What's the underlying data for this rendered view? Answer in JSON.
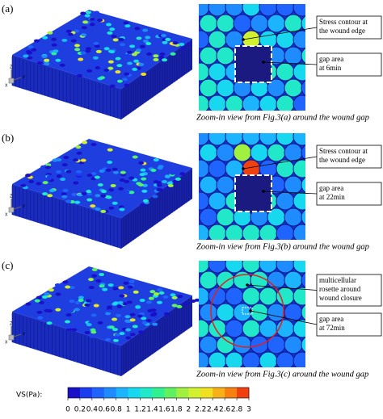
{
  "panels": [
    {
      "label": "(a)",
      "caption": "Zoom-in view from Fig.3(a) around the wound gap",
      "annotations": [
        {
          "lines": [
            "Stress contour at",
            "the wound edge"
          ]
        },
        {
          "lines": [
            "gap area",
            "at 6min"
          ]
        }
      ]
    },
    {
      "label": "(b)",
      "caption": "Zoom-in view from Fig.3(b) around the wound gap",
      "annotations": [
        {
          "lines": [
            "Stress contour at",
            "the wound edge"
          ]
        },
        {
          "lines": [
            "gap area",
            "at 22min"
          ]
        }
      ]
    },
    {
      "label": "(c)",
      "caption": "Zoom-in view from Fig.3(c) around the wound gap",
      "annotations": [
        {
          "lines": [
            "multicellular",
            "rosette around",
            "wound closure"
          ]
        },
        {
          "lines": [
            "gap area",
            "at 72min"
          ]
        }
      ]
    }
  ],
  "axis_triad": {
    "x": "X",
    "y": "Y",
    "z": "Z"
  },
  "colorbar": {
    "label": "VS(Pa):",
    "ticks": [
      0,
      0.2,
      0.4,
      0.6,
      0.8,
      1,
      1.2,
      1.4,
      1.6,
      1.8,
      2,
      2.2,
      2.4,
      2.6,
      2.8,
      3
    ],
    "colors": [
      "#1a10c8",
      "#1c3cf0",
      "#1f64ff",
      "#1e8cff",
      "#1cb4ff",
      "#18d8f0",
      "#20e8c8",
      "#30f090",
      "#60f060",
      "#a0f040",
      "#d0f030",
      "#f0e020",
      "#f8b018",
      "#f88010",
      "#f04010"
    ]
  }
}
